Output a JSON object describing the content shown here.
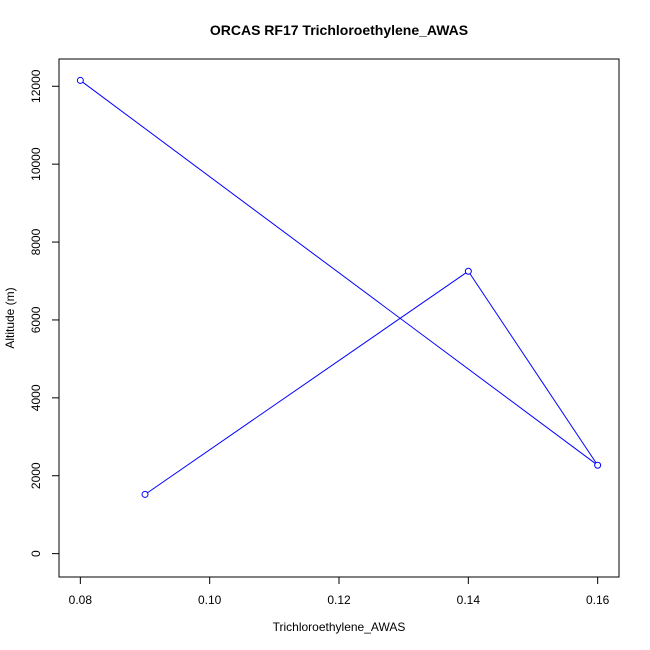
{
  "chart_data": {
    "type": "line",
    "title": "ORCAS RF17 Trichloroethylene_AWAS",
    "xlabel": "Trichloroethylene_AWAS",
    "ylabel": "Altitude (m)",
    "xlim": [
      0.0767,
      0.1633
    ],
    "ylim": [
      -600,
      12700
    ],
    "x_ticks": [
      "0.08",
      "0.10",
      "0.12",
      "0.14",
      "0.16"
    ],
    "x_tick_values": [
      0.08,
      0.1,
      0.12,
      0.14,
      0.16
    ],
    "y_ticks": [
      "0",
      "2000",
      "4000",
      "6000",
      "8000",
      "10000",
      "12000"
    ],
    "y_tick_values": [
      0,
      2000,
      4000,
      6000,
      8000,
      10000,
      12000
    ],
    "grid": false,
    "series": [
      {
        "color": "#0000ff",
        "marker": "open-circle",
        "points": [
          {
            "x": 0.09,
            "y": 1520
          },
          {
            "x": 0.14,
            "y": 7250
          },
          {
            "x": 0.16,
            "y": 2270
          },
          {
            "x": 0.08,
            "y": 12150
          }
        ]
      }
    ]
  }
}
